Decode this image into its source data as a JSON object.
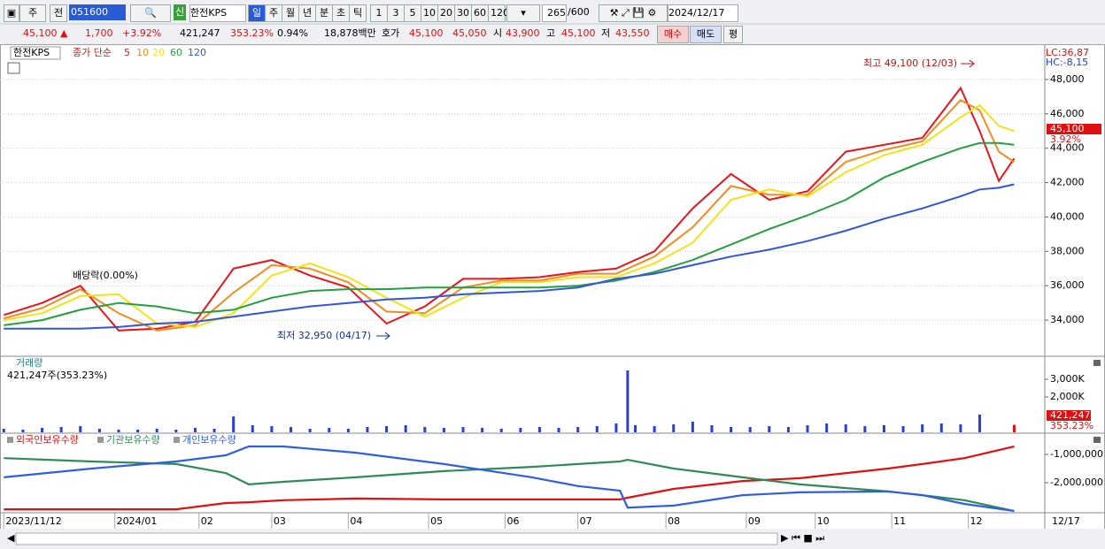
{
  "toolbar": {
    "period_type": "주",
    "prev": "전",
    "code": "051600",
    "credit": "신",
    "name": "한전KPS",
    "intervals": [
      "일",
      "주",
      "월",
      "년",
      "분",
      "초",
      "틱"
    ],
    "numbers": [
      "1",
      "3",
      "5",
      "10",
      "20",
      "30",
      "60",
      "120"
    ],
    "count": "265",
    "max_count": "/600",
    "date": "2024/12/17"
  },
  "quote": {
    "price": "45,100",
    "arrow": "▲",
    "change": "1,700",
    "change_pct": "+3.92%",
    "volume": "421,247",
    "volume_ratio": "353.23%",
    "turnover": "0.94%",
    "amount": "18,878백만",
    "bid_label": "호가",
    "ask": "45,100",
    "bid": "45,050",
    "open_label": "시",
    "open": "43,900",
    "high_label": "고",
    "high": "45,100",
    "low_label": "저",
    "low": "43,550",
    "buy": "매수",
    "sell": "매도",
    "avg": "평",
    "pct": "3.92%"
  },
  "chart_data": [
    {
      "type": "line",
      "title": "한전KPS",
      "legend_prefix": "종가 단순",
      "lc": "LC:36,87",
      "hc": "HC:-8,15",
      "annotations": {
        "high": "최고 49,100 (12/03)",
        "low": "최저 32,950 (04/17)",
        "dividend": "배당락(0.00%)"
      },
      "x": [
        0,
        10,
        20,
        30,
        40,
        50,
        60,
        70,
        80,
        90,
        100,
        110,
        120,
        130,
        140,
        150,
        160,
        170,
        180,
        190,
        200,
        210,
        220,
        230,
        240,
        250,
        255,
        260,
        264
      ],
      "xlim": [
        -1,
        272
      ],
      "ylim": [
        32000,
        50000
      ],
      "grid": true,
      "yticks": [
        {
          "value": 34000,
          "label": "34,000"
        },
        {
          "value": 36000,
          "label": "36,000"
        },
        {
          "value": 38000,
          "label": "38,000"
        },
        {
          "value": 40000,
          "label": "40,000"
        },
        {
          "value": 42000,
          "label": "42,000"
        },
        {
          "value": 44000,
          "label": "44,000"
        },
        {
          "value": 46000,
          "label": "46,000"
        },
        {
          "value": 48000,
          "label": "48,000"
        }
      ],
      "series": [
        {
          "name": "5",
          "color": "#e8141b",
          "values": [
            34300,
            35000,
            36000,
            33400,
            33500,
            33900,
            37000,
            37500,
            36600,
            35900,
            33800,
            34800,
            36400,
            36400,
            36500,
            36800,
            37000,
            38000,
            40500,
            42500,
            41000,
            41500,
            43800,
            44200,
            44600,
            47500,
            45000,
            42100,
            43400
          ]
        },
        {
          "name": "10",
          "color": "#f28c1e",
          "values": [
            34100,
            34700,
            35800,
            34400,
            33400,
            33700,
            35600,
            37200,
            37000,
            36200,
            34500,
            34400,
            35900,
            36300,
            36300,
            36700,
            36700,
            37700,
            39400,
            41800,
            41300,
            41300,
            43200,
            43900,
            44400,
            46800,
            46200,
            43800,
            43200
          ]
        },
        {
          "name": "20",
          "color": "#f2e21a",
          "values": [
            34000,
            34400,
            35400,
            35500,
            33800,
            33600,
            34400,
            36600,
            37300,
            36500,
            35300,
            34200,
            35300,
            36200,
            36200,
            36500,
            36500,
            37300,
            38500,
            41000,
            41600,
            41200,
            42600,
            43600,
            44200,
            45800,
            46500,
            45300,
            45000
          ]
        },
        {
          "name": "60",
          "color": "#22a040",
          "values": [
            33700,
            34000,
            34600,
            35000,
            34800,
            34400,
            34600,
            35300,
            35700,
            35800,
            35800,
            35900,
            35900,
            35900,
            35900,
            36000,
            36300,
            36800,
            37500,
            38400,
            39300,
            40100,
            41000,
            42300,
            43200,
            44000,
            44300,
            44300,
            44200
          ]
        },
        {
          "name": "120",
          "color": "#3355dd",
          "values": [
            33500,
            33500,
            33500,
            33600,
            33800,
            33900,
            34200,
            34500,
            34800,
            35000,
            35200,
            35300,
            35500,
            35600,
            35700,
            35900,
            36400,
            36700,
            37200,
            37700,
            38100,
            38600,
            39200,
            39900,
            40500,
            41200,
            41600,
            41700,
            41900
          ]
        }
      ]
    },
    {
      "type": "bar",
      "title": "거래량",
      "subtitle": "421,247주(353.23%)",
      "last_label": "421,247",
      "last_ratio": "353.23%",
      "x": [
        0,
        5,
        10,
        15,
        20,
        25,
        30,
        35,
        40,
        45,
        50,
        55,
        60,
        65,
        70,
        75,
        80,
        85,
        90,
        95,
        100,
        105,
        110,
        115,
        120,
        125,
        130,
        135,
        140,
        145,
        150,
        155,
        160,
        163,
        165,
        170,
        175,
        180,
        185,
        190,
        195,
        200,
        205,
        210,
        215,
        220,
        225,
        230,
        235,
        240,
        245,
        250,
        255,
        264
      ],
      "values": [
        200,
        150,
        250,
        300,
        350,
        200,
        150,
        150,
        200,
        150,
        250,
        200,
        900,
        400,
        350,
        300,
        200,
        250,
        200,
        300,
        350,
        400,
        300,
        250,
        300,
        250,
        200,
        250,
        300,
        250,
        300,
        350,
        500,
        3500,
        400,
        350,
        450,
        600,
        400,
        300,
        300,
        350,
        300,
        400,
        500,
        450,
        350,
        400,
        350,
        450,
        500,
        450,
        1000,
        421.247
      ],
      "color": "#2a3fd0",
      "xlim": [
        -1,
        272
      ],
      "ylim": [
        0,
        4200
      ],
      "yticks": [
        {
          "value": 2000,
          "label": "2,000K"
        },
        {
          "value": 3000,
          "label": "3,000K"
        }
      ]
    },
    {
      "type": "line",
      "xlim": [
        -1,
        272
      ],
      "ylim": [
        -3062500,
        -312500
      ],
      "end_label": "12/17",
      "x": [
        0,
        23,
        45,
        58,
        64,
        73,
        92,
        115,
        138,
        150,
        161,
        163,
        175,
        193,
        208,
        231,
        240,
        251,
        264
      ],
      "xticks": [
        {
          "value": 0,
          "label": "2023/11/12"
        },
        {
          "value": 29,
          "label": "2024/01"
        },
        {
          "value": 51,
          "label": "02"
        },
        {
          "value": 70,
          "label": "03"
        },
        {
          "value": 90,
          "label": "04"
        },
        {
          "value": 111,
          "label": "05"
        },
        {
          "value": 131,
          "label": "06"
        },
        {
          "value": 150,
          "label": "07"
        },
        {
          "value": 173,
          "label": "08"
        },
        {
          "value": 194,
          "label": "09"
        },
        {
          "value": 212,
          "label": "10"
        },
        {
          "value": 232,
          "label": "11"
        },
        {
          "value": 252,
          "label": "12"
        }
      ],
      "yticks": [
        {
          "value": -2000000,
          "label": "-2,000,000"
        },
        {
          "value": -1000000,
          "label": "-1,000,000"
        }
      ],
      "series": [
        {
          "name": "외국인보유수량",
          "color": "#e01010",
          "values": [
            -2940000,
            -2940000,
            -2940000,
            -2720000,
            -2690000,
            -2620000,
            -2560000,
            -2590000,
            -2590000,
            -2590000,
            -2590000,
            -2530000,
            -2220000,
            -1940000,
            -1840000,
            -1500000,
            -1340000,
            -1130000,
            -720000
          ]
        },
        {
          "name": "기관보유수량",
          "color": "#2e8b57",
          "values": [
            -1130000,
            -1250000,
            -1340000,
            -1660000,
            -2060000,
            -1970000,
            -1810000,
            -1590000,
            -1440000,
            -1340000,
            -1250000,
            -1190000,
            -1500000,
            -1810000,
            -2060000,
            -2310000,
            -2440000,
            -2620000,
            -3000000
          ]
        },
        {
          "name": "개인보유수량",
          "color": "#2f5fe0",
          "values": [
            -1810000,
            -1500000,
            -1250000,
            -1030000,
            -720000,
            -720000,
            -940000,
            -1340000,
            -1810000,
            -2120000,
            -2280000,
            -2880000,
            -2810000,
            -2440000,
            -2340000,
            -2310000,
            -2440000,
            -2750000,
            -3000000
          ]
        }
      ]
    }
  ]
}
